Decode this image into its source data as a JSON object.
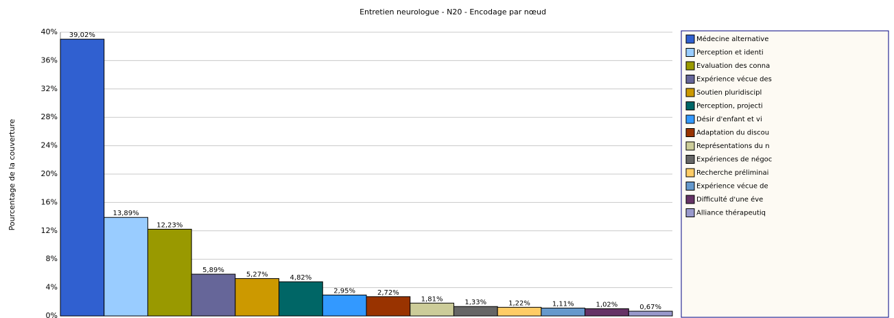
{
  "chart_data": {
    "type": "bar",
    "title": "Entretien neurologue - N20 - Encodage par nœud",
    "y_label": "Pourcentage de la couverture",
    "categories": [
      "Médecine alternative",
      "Perception et identi",
      "Evaluation des conna",
      "Expérience vécue des",
      "Soutien pluridiscipl",
      "Perception, projecti",
      "Désir d'enfant et vi",
      "Adaptation du discou",
      "Représentations du n",
      "Expériences de négoc",
      "Recherche préliminai",
      "Expérience vécue de",
      "Difficulté d'une éve",
      "Alliance thérapeutiq"
    ],
    "values": [
      39.02,
      13.89,
      12.23,
      5.89,
      5.27,
      4.82,
      2.95,
      2.72,
      1.81,
      1.33,
      1.22,
      1.11,
      1.02,
      0.67
    ],
    "value_labels": [
      "39,02%",
      "13,89%",
      "12,23%",
      "5,89%",
      "5,27%",
      "4,82%",
      "2,95%",
      "2,72%",
      "1,81%",
      "1,33%",
      "1,22%",
      "1,11%",
      "1,02%",
      "0,67%"
    ],
    "colors": [
      "#3060d0",
      "#99ccff",
      "#999900",
      "#666699",
      "#cc9900",
      "#006666",
      "#3399ff",
      "#993300",
      "#cccc99",
      "#666666",
      "#ffcc66",
      "#6699cc",
      "#663366",
      "#9999cc"
    ],
    "ylim": [
      0,
      40
    ],
    "yticks": [
      {
        "value": 0,
        "label": "0%"
      },
      {
        "value": 4,
        "label": "4%"
      },
      {
        "value": 8,
        "label": "8%"
      },
      {
        "value": 12,
        "label": "12%"
      },
      {
        "value": 16,
        "label": "16%"
      },
      {
        "value": 20,
        "label": "20%"
      },
      {
        "value": 24,
        "label": "24%"
      },
      {
        "value": 28,
        "label": "28%"
      },
      {
        "value": 32,
        "label": "32%"
      },
      {
        "value": 36,
        "label": "36%"
      },
      {
        "value": 40,
        "label": "40%"
      }
    ],
    "grid": true,
    "legend": "right"
  }
}
